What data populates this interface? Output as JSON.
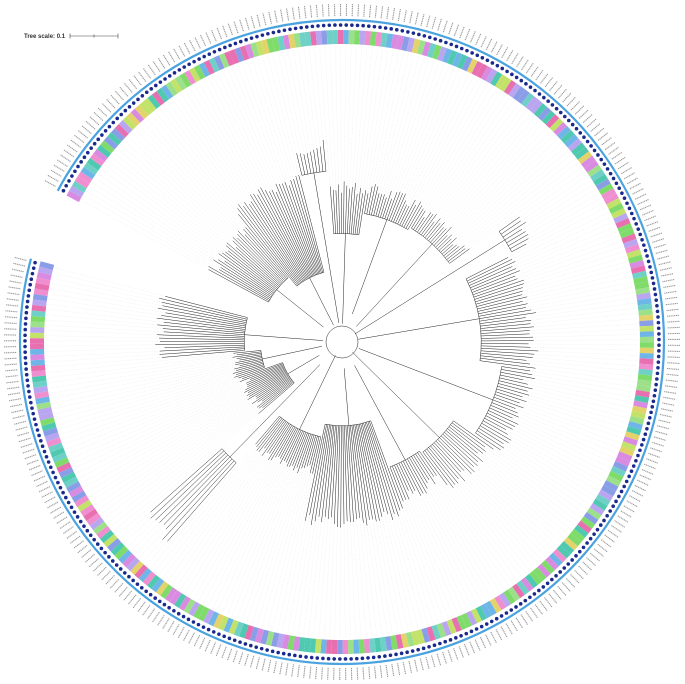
{
  "figure": {
    "tree_scale_label": "Tree scale: 0.1",
    "tree_scale_value": 0.1
  },
  "colors": {
    "background": "#ffffff",
    "branch": "#222222",
    "guide_line": "#d6d6d6",
    "dot_ring": "#1a2a8c",
    "outer_ring": "#4aa3df",
    "label_text": "#555555",
    "strip_palette": [
      "#6fd0c8",
      "#7fdc6a",
      "#e86fb0",
      "#b9a5f0",
      "#c2e26a",
      "#f08fd0",
      "#6fb6e8",
      "#9de08a",
      "#d88be0",
      "#4fc9b0",
      "#e3d36a",
      "#8a9ee8"
    ]
  },
  "rings": {
    "strip_ring": "color-strip",
    "dot_ring": "dot-markers",
    "outer_ring": "blue-band"
  }
}
